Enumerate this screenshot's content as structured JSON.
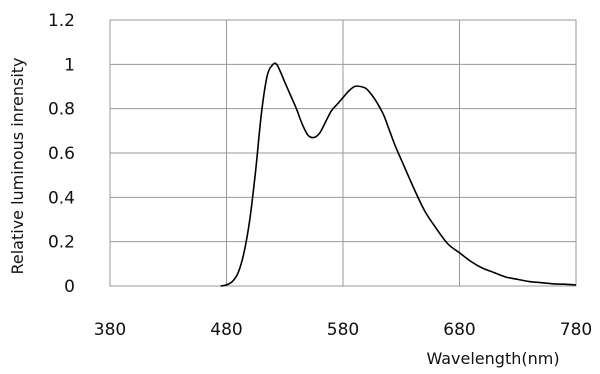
{
  "chart_data": {
    "type": "line",
    "title": "",
    "xlabel": "Wavelength(nm)",
    "ylabel": "Relative luminous inrensity",
    "xlim": [
      380,
      780
    ],
    "ylim": [
      0,
      1.2
    ],
    "x_ticks": [
      380,
      480,
      580,
      680,
      780
    ],
    "y_ticks": [
      0,
      0.2,
      0.4,
      0.6,
      0.8,
      1,
      1.2
    ],
    "x_tick_labels": [
      "380",
      "480",
      "580",
      "680",
      "780"
    ],
    "y_tick_labels": [
      "0",
      "0.2",
      "0.4",
      "0.6",
      "0.8",
      "1",
      "1.2"
    ],
    "grid": true,
    "legend": "none",
    "series": [
      {
        "x": [
          475,
          480,
          485,
          490,
          495,
          500,
          505,
          510,
          515,
          520,
          523,
          526,
          530,
          535,
          540,
          545,
          550,
          555,
          560,
          565,
          570,
          575,
          580,
          585,
          590,
          595,
          600,
          605,
          610,
          615,
          620,
          625,
          630,
          640,
          650,
          660,
          670,
          680,
          690,
          700,
          710,
          720,
          730,
          740,
          750,
          760,
          770,
          780
        ],
        "y": [
          0.0,
          0.005,
          0.02,
          0.06,
          0.15,
          0.3,
          0.52,
          0.78,
          0.95,
          1.0,
          1.0,
          0.97,
          0.92,
          0.86,
          0.8,
          0.73,
          0.68,
          0.67,
          0.69,
          0.74,
          0.79,
          0.82,
          0.85,
          0.88,
          0.9,
          0.9,
          0.89,
          0.86,
          0.82,
          0.77,
          0.7,
          0.63,
          0.57,
          0.45,
          0.34,
          0.26,
          0.19,
          0.15,
          0.11,
          0.08,
          0.06,
          0.04,
          0.03,
          0.02,
          0.015,
          0.01,
          0.008,
          0.005
        ]
      }
    ]
  }
}
